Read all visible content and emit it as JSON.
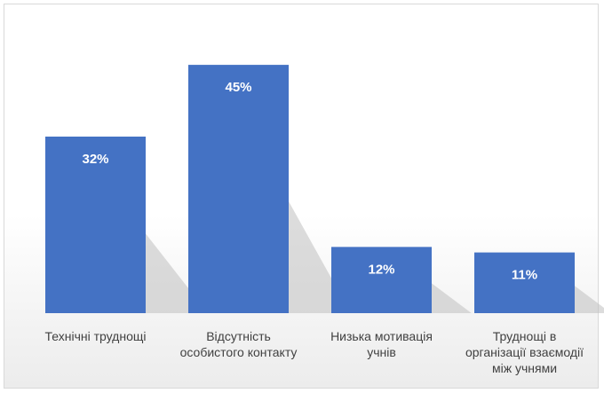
{
  "chart_data": {
    "type": "bar",
    "title": "",
    "xlabel": "",
    "ylabel": "",
    "ylim": [
      0,
      50
    ],
    "grid": false,
    "legend": "none",
    "categories": [
      [
        "Технічні труднощі"
      ],
      [
        "Відсутність",
        "особистого контакту"
      ],
      [
        "Низька мотивація",
        "учнів"
      ],
      [
        "Труднощі в",
        "організації взаємодії",
        "між учнями"
      ]
    ],
    "values": [
      32,
      45,
      12,
      11
    ],
    "data_labels": [
      "32%",
      "45%",
      "12%",
      "11%"
    ],
    "colors": {
      "bar": "#4472c4",
      "label": "#ffffff",
      "category_text": "#404040"
    }
  }
}
